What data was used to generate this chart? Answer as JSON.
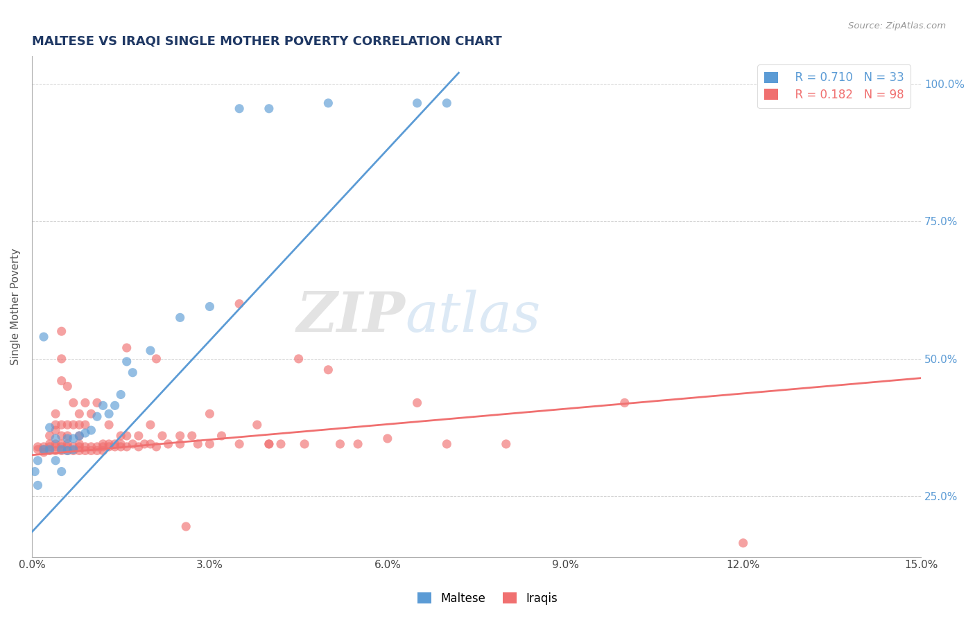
{
  "title": "MALTESE VS IRAQI SINGLE MOTHER POVERTY CORRELATION CHART",
  "source": "Source: ZipAtlas.com",
  "xlabel_ticks": [
    0.0,
    0.03,
    0.06,
    0.09,
    0.12,
    0.15
  ],
  "xlabel_labels": [
    "0.0%",
    "3.0%",
    "6.0%",
    "9.0%",
    "12.0%",
    "15.0%"
  ],
  "ylabel_ticks": [
    0.25,
    0.5,
    0.75,
    1.0
  ],
  "ylabel_labels": [
    "25.0%",
    "50.0%",
    "75.0%",
    "100.0%"
  ],
  "ylabel_label": "Single Mother Poverty",
  "maltese_color": "#5b9bd5",
  "iraqi_color": "#f07070",
  "watermark_zip": "ZIP",
  "watermark_atlas": "atlas",
  "legend_r_maltese": "R = 0.710",
  "legend_n_maltese": "N = 33",
  "legend_r_iraqi": "R = 0.182",
  "legend_n_iraqi": "N = 98",
  "xlim": [
    0.0,
    0.15
  ],
  "ylim": [
    0.14,
    1.05
  ],
  "maltese_scatter": [
    [
      0.0005,
      0.295
    ],
    [
      0.001,
      0.27
    ],
    [
      0.001,
      0.315
    ],
    [
      0.002,
      0.335
    ],
    [
      0.002,
      0.54
    ],
    [
      0.003,
      0.375
    ],
    [
      0.003,
      0.335
    ],
    [
      0.004,
      0.355
    ],
    [
      0.004,
      0.315
    ],
    [
      0.005,
      0.335
    ],
    [
      0.005,
      0.295
    ],
    [
      0.006,
      0.333
    ],
    [
      0.006,
      0.355
    ],
    [
      0.007,
      0.335
    ],
    [
      0.007,
      0.355
    ],
    [
      0.008,
      0.36
    ],
    [
      0.009,
      0.365
    ],
    [
      0.01,
      0.37
    ],
    [
      0.011,
      0.395
    ],
    [
      0.012,
      0.415
    ],
    [
      0.013,
      0.4
    ],
    [
      0.014,
      0.415
    ],
    [
      0.015,
      0.435
    ],
    [
      0.016,
      0.495
    ],
    [
      0.017,
      0.475
    ],
    [
      0.02,
      0.515
    ],
    [
      0.025,
      0.575
    ],
    [
      0.03,
      0.595
    ],
    [
      0.035,
      0.955
    ],
    [
      0.04,
      0.955
    ],
    [
      0.05,
      0.965
    ],
    [
      0.065,
      0.965
    ],
    [
      0.07,
      0.965
    ]
  ],
  "iraqi_scatter": [
    [
      0.001,
      0.335
    ],
    [
      0.001,
      0.34
    ],
    [
      0.002,
      0.335
    ],
    [
      0.002,
      0.33
    ],
    [
      0.002,
      0.34
    ],
    [
      0.003,
      0.333
    ],
    [
      0.003,
      0.34
    ],
    [
      0.003,
      0.345
    ],
    [
      0.003,
      0.36
    ],
    [
      0.004,
      0.333
    ],
    [
      0.004,
      0.34
    ],
    [
      0.004,
      0.345
    ],
    [
      0.004,
      0.37
    ],
    [
      0.004,
      0.38
    ],
    [
      0.004,
      0.4
    ],
    [
      0.005,
      0.333
    ],
    [
      0.005,
      0.34
    ],
    [
      0.005,
      0.345
    ],
    [
      0.005,
      0.36
    ],
    [
      0.005,
      0.38
    ],
    [
      0.005,
      0.46
    ],
    [
      0.005,
      0.5
    ],
    [
      0.005,
      0.55
    ],
    [
      0.006,
      0.333
    ],
    [
      0.006,
      0.34
    ],
    [
      0.006,
      0.345
    ],
    [
      0.006,
      0.36
    ],
    [
      0.006,
      0.38
    ],
    [
      0.006,
      0.45
    ],
    [
      0.007,
      0.333
    ],
    [
      0.007,
      0.34
    ],
    [
      0.007,
      0.38
    ],
    [
      0.007,
      0.42
    ],
    [
      0.008,
      0.333
    ],
    [
      0.008,
      0.34
    ],
    [
      0.008,
      0.345
    ],
    [
      0.008,
      0.36
    ],
    [
      0.008,
      0.38
    ],
    [
      0.008,
      0.4
    ],
    [
      0.009,
      0.333
    ],
    [
      0.009,
      0.34
    ],
    [
      0.009,
      0.38
    ],
    [
      0.009,
      0.42
    ],
    [
      0.01,
      0.333
    ],
    [
      0.01,
      0.34
    ],
    [
      0.01,
      0.4
    ],
    [
      0.011,
      0.333
    ],
    [
      0.011,
      0.34
    ],
    [
      0.011,
      0.42
    ],
    [
      0.012,
      0.333
    ],
    [
      0.012,
      0.34
    ],
    [
      0.012,
      0.345
    ],
    [
      0.013,
      0.34
    ],
    [
      0.013,
      0.345
    ],
    [
      0.013,
      0.38
    ],
    [
      0.014,
      0.34
    ],
    [
      0.014,
      0.345
    ],
    [
      0.015,
      0.34
    ],
    [
      0.015,
      0.345
    ],
    [
      0.015,
      0.36
    ],
    [
      0.016,
      0.34
    ],
    [
      0.016,
      0.36
    ],
    [
      0.016,
      0.52
    ],
    [
      0.017,
      0.345
    ],
    [
      0.018,
      0.34
    ],
    [
      0.018,
      0.36
    ],
    [
      0.019,
      0.345
    ],
    [
      0.02,
      0.345
    ],
    [
      0.02,
      0.38
    ],
    [
      0.021,
      0.34
    ],
    [
      0.021,
      0.5
    ],
    [
      0.022,
      0.36
    ],
    [
      0.023,
      0.345
    ],
    [
      0.025,
      0.345
    ],
    [
      0.025,
      0.36
    ],
    [
      0.026,
      0.195
    ],
    [
      0.027,
      0.36
    ],
    [
      0.028,
      0.345
    ],
    [
      0.03,
      0.345
    ],
    [
      0.03,
      0.4
    ],
    [
      0.032,
      0.36
    ],
    [
      0.035,
      0.345
    ],
    [
      0.035,
      0.6
    ],
    [
      0.038,
      0.38
    ],
    [
      0.04,
      0.345
    ],
    [
      0.04,
      0.345
    ],
    [
      0.042,
      0.345
    ],
    [
      0.045,
      0.5
    ],
    [
      0.046,
      0.345
    ],
    [
      0.05,
      0.48
    ],
    [
      0.052,
      0.345
    ],
    [
      0.055,
      0.345
    ],
    [
      0.06,
      0.355
    ],
    [
      0.065,
      0.42
    ],
    [
      0.07,
      0.345
    ],
    [
      0.08,
      0.345
    ],
    [
      0.1,
      0.42
    ],
    [
      0.12,
      0.165
    ]
  ],
  "maltese_line": [
    [
      0.0,
      0.185
    ],
    [
      0.072,
      1.02
    ]
  ],
  "iraqi_line": [
    [
      0.0,
      0.325
    ],
    [
      0.15,
      0.465
    ]
  ]
}
